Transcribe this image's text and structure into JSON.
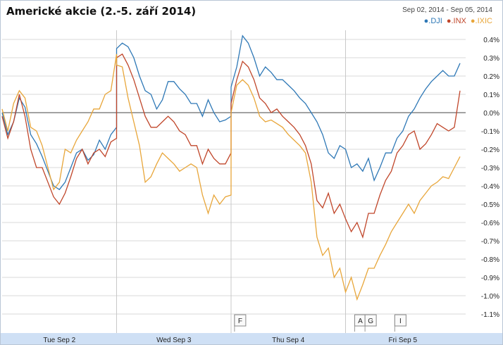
{
  "chart_data": {
    "type": "line",
    "title": "Americké akcie (2.-5. září 2014)",
    "date_range": "Sep 02, 2014  -  Sep 05, 2014",
    "xlabel": "",
    "ylabel": "",
    "ylim": [
      -1.15,
      0.45
    ],
    "y_ticks": [
      "0.4%",
      "0.3%",
      "0.2%",
      "0.1%",
      "0.0%",
      "-0.1%",
      "-0.2%",
      "-0.3%",
      "-0.4%",
      "-0.5%",
      "-0.6%",
      "-0.7%",
      "-0.8%",
      "-0.9%",
      "-1.0%",
      "-1.1%"
    ],
    "y_tick_values": [
      0.4,
      0.3,
      0.2,
      0.1,
      0.0,
      -0.1,
      -0.2,
      -0.3,
      -0.4,
      -0.5,
      -0.6,
      -0.7,
      -0.8,
      -0.9,
      -1.0,
      -1.1
    ],
    "x_labels": [
      "Tue Sep 2",
      "Wed Sep 3",
      "Thu Sep 4",
      "Fri Sep 5"
    ],
    "x_range": [
      0,
      4
    ],
    "grid": true,
    "legend_position": "top-right",
    "flags": [
      "F",
      "A",
      "G",
      "I"
    ],
    "flag_positions": [
      2.03,
      3.08,
      3.17,
      3.43
    ],
    "series": [
      {
        "name": ".DJI",
        "color": "#2e78b6",
        "x": [
          0,
          0.05,
          0.1,
          0.15,
          0.2,
          0.25,
          0.3,
          0.35,
          0.4,
          0.45,
          0.5,
          0.55,
          0.6,
          0.65,
          0.7,
          0.75,
          0.8,
          0.85,
          0.9,
          0.95,
          1.0,
          1.0,
          1.05,
          1.1,
          1.15,
          1.2,
          1.25,
          1.3,
          1.35,
          1.4,
          1.45,
          1.5,
          1.55,
          1.6,
          1.65,
          1.7,
          1.75,
          1.8,
          1.85,
          1.9,
          1.95,
          2.0,
          2.0,
          2.05,
          2.1,
          2.15,
          2.2,
          2.25,
          2.3,
          2.35,
          2.4,
          2.45,
          2.5,
          2.55,
          2.6,
          2.65,
          2.7,
          2.75,
          2.8,
          2.85,
          2.9,
          2.95,
          3.0,
          3.05,
          3.1,
          3.15,
          3.2,
          3.25,
          3.3,
          3.35,
          3.4,
          3.45,
          3.5,
          3.55,
          3.6,
          3.65,
          3.7,
          3.75,
          3.8,
          3.85,
          3.9,
          3.95,
          4.0
        ],
        "values": [
          0.0,
          -0.12,
          -0.05,
          0.08,
          0.03,
          -0.12,
          -0.17,
          -0.24,
          -0.32,
          -0.4,
          -0.42,
          -0.38,
          -0.3,
          -0.22,
          -0.2,
          -0.26,
          -0.23,
          -0.15,
          -0.2,
          -0.12,
          -0.08,
          0.35,
          0.38,
          0.36,
          0.3,
          0.2,
          0.12,
          0.1,
          0.02,
          0.07,
          0.17,
          0.17,
          0.13,
          0.1,
          0.05,
          0.05,
          -0.02,
          0.07,
          0.0,
          -0.05,
          -0.04,
          -0.02,
          0.14,
          0.25,
          0.42,
          0.38,
          0.3,
          0.2,
          0.25,
          0.22,
          0.18,
          0.18,
          0.15,
          0.12,
          0.08,
          0.05,
          0.0,
          -0.05,
          -0.12,
          -0.22,
          -0.25,
          -0.18,
          -0.2,
          -0.3,
          -0.28,
          -0.32,
          -0.25,
          -0.37,
          -0.3,
          -0.22,
          -0.22,
          -0.14,
          -0.1,
          -0.02,
          0.02,
          0.08,
          0.13,
          0.17,
          0.2,
          0.23,
          0.2,
          0.2,
          0.27
        ]
      },
      {
        "name": ".INX",
        "color": "#c0462a",
        "x": [
          0,
          0.05,
          0.1,
          0.15,
          0.2,
          0.25,
          0.3,
          0.35,
          0.4,
          0.45,
          0.5,
          0.55,
          0.6,
          0.65,
          0.7,
          0.75,
          0.8,
          0.85,
          0.9,
          0.95,
          1.0,
          1.0,
          1.05,
          1.1,
          1.15,
          1.2,
          1.25,
          1.3,
          1.35,
          1.4,
          1.45,
          1.5,
          1.55,
          1.6,
          1.65,
          1.7,
          1.75,
          1.8,
          1.85,
          1.9,
          1.95,
          2.0,
          2.0,
          2.05,
          2.1,
          2.15,
          2.2,
          2.25,
          2.3,
          2.35,
          2.4,
          2.45,
          2.5,
          2.55,
          2.6,
          2.65,
          2.7,
          2.75,
          2.8,
          2.85,
          2.9,
          2.95,
          3.0,
          3.05,
          3.1,
          3.15,
          3.2,
          3.25,
          3.3,
          3.35,
          3.4,
          3.45,
          3.5,
          3.55,
          3.6,
          3.65,
          3.7,
          3.75,
          3.8,
          3.85,
          3.9,
          3.95,
          4.0
        ],
        "values": [
          -0.02,
          -0.14,
          -0.05,
          0.1,
          -0.02,
          -0.2,
          -0.3,
          -0.3,
          -0.38,
          -0.46,
          -0.5,
          -0.44,
          -0.35,
          -0.25,
          -0.2,
          -0.28,
          -0.22,
          -0.2,
          -0.24,
          -0.16,
          -0.14,
          0.3,
          0.32,
          0.26,
          0.18,
          0.08,
          -0.02,
          -0.08,
          -0.08,
          -0.05,
          -0.02,
          -0.05,
          -0.1,
          -0.12,
          -0.18,
          -0.18,
          -0.28,
          -0.2,
          -0.25,
          -0.28,
          -0.28,
          -0.22,
          0.05,
          0.18,
          0.28,
          0.25,
          0.18,
          0.08,
          0.05,
          0.0,
          0.02,
          -0.02,
          -0.05,
          -0.08,
          -0.12,
          -0.18,
          -0.28,
          -0.48,
          -0.52,
          -0.44,
          -0.55,
          -0.5,
          -0.58,
          -0.65,
          -0.6,
          -0.68,
          -0.55,
          -0.55,
          -0.45,
          -0.37,
          -0.32,
          -0.22,
          -0.18,
          -0.12,
          -0.1,
          -0.2,
          -0.17,
          -0.12,
          -0.06,
          -0.08,
          -0.1,
          -0.08,
          0.12
        ]
      },
      {
        "name": ".IXIC",
        "color": "#e8a63a",
        "x": [
          0,
          0.05,
          0.1,
          0.15,
          0.2,
          0.25,
          0.3,
          0.35,
          0.4,
          0.45,
          0.5,
          0.55,
          0.6,
          0.65,
          0.7,
          0.75,
          0.8,
          0.85,
          0.9,
          0.95,
          1.0,
          1.0,
          1.05,
          1.1,
          1.15,
          1.2,
          1.25,
          1.3,
          1.35,
          1.4,
          1.45,
          1.5,
          1.55,
          1.6,
          1.65,
          1.7,
          1.75,
          1.8,
          1.85,
          1.9,
          1.95,
          2.0,
          2.0,
          2.05,
          2.1,
          2.15,
          2.2,
          2.25,
          2.3,
          2.35,
          2.4,
          2.45,
          2.5,
          2.55,
          2.6,
          2.65,
          2.7,
          2.75,
          2.8,
          2.85,
          2.9,
          2.95,
          3.0,
          3.05,
          3.1,
          3.15,
          3.2,
          3.25,
          3.3,
          3.35,
          3.4,
          3.45,
          3.5,
          3.55,
          3.6,
          3.65,
          3.7,
          3.75,
          3.8,
          3.85,
          3.9,
          3.95,
          4.0
        ],
        "values": [
          0.02,
          -0.1,
          0.05,
          0.12,
          0.08,
          -0.08,
          -0.1,
          -0.18,
          -0.3,
          -0.42,
          -0.38,
          -0.2,
          -0.22,
          -0.15,
          -0.1,
          -0.05,
          0.02,
          0.02,
          0.1,
          0.12,
          0.32,
          0.26,
          0.25,
          0.08,
          -0.05,
          -0.18,
          -0.38,
          -0.35,
          -0.28,
          -0.22,
          -0.25,
          -0.28,
          -0.32,
          -0.3,
          -0.28,
          -0.3,
          -0.45,
          -0.55,
          -0.45,
          -0.5,
          -0.46,
          -0.45,
          0.0,
          0.15,
          0.18,
          0.15,
          0.08,
          -0.02,
          -0.05,
          -0.04,
          -0.06,
          -0.08,
          -0.12,
          -0.15,
          -0.18,
          -0.22,
          -0.38,
          -0.68,
          -0.78,
          -0.74,
          -0.9,
          -0.85,
          -0.98,
          -0.9,
          -1.02,
          -0.94,
          -0.85,
          -0.85,
          -0.78,
          -0.72,
          -0.65,
          -0.6,
          -0.55,
          -0.5,
          -0.55,
          -0.48,
          -0.44,
          -0.4,
          -0.38,
          -0.35,
          -0.36,
          -0.3,
          -0.24
        ]
      }
    ]
  }
}
